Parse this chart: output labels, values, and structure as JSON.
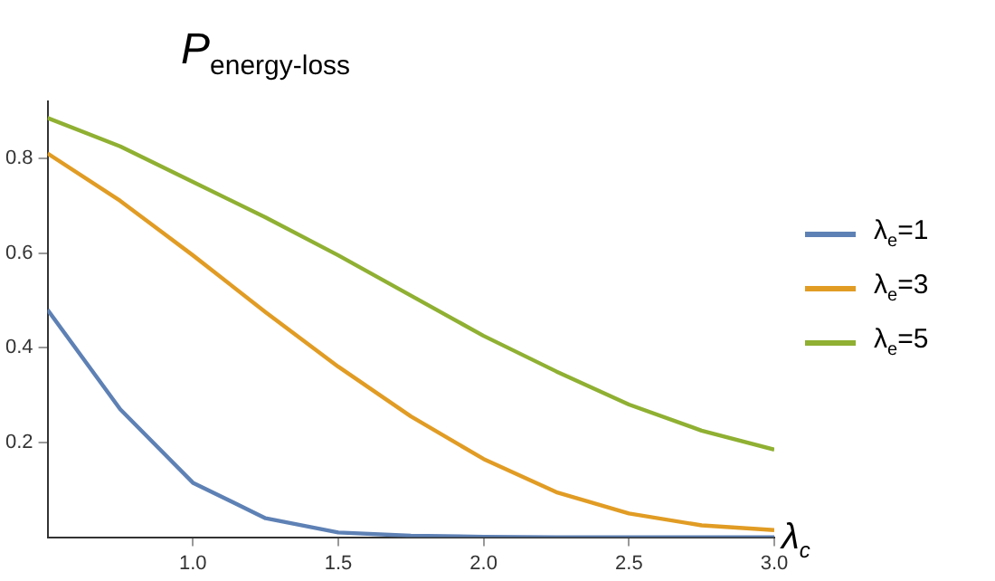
{
  "chart_data": {
    "type": "line",
    "title": "P$_{energy-loss}$",
    "xlabel": "λ$_{c}$",
    "x": [
      0.5,
      0.75,
      1.0,
      1.25,
      1.5,
      1.75,
      2.0,
      2.25,
      2.5,
      2.75,
      3.0
    ],
    "series": [
      {
        "name": "λ$_{e}$=1",
        "color": "#5e81b5",
        "values": [
          0.48,
          0.27,
          0.115,
          0.04,
          0.01,
          0.003,
          0.001,
          0,
          0,
          0,
          0
        ]
      },
      {
        "name": "λ$_{e}$=3",
        "color": "#e19c24",
        "values": [
          0.81,
          0.71,
          0.595,
          0.475,
          0.36,
          0.255,
          0.165,
          0.095,
          0.05,
          0.025,
          0.015
        ]
      },
      {
        "name": "λ$_{e}$=5",
        "color": "#8fb032",
        "values": [
          0.885,
          0.825,
          0.75,
          0.675,
          0.595,
          0.51,
          0.425,
          0.35,
          0.28,
          0.225,
          0.185
        ]
      }
    ],
    "xlim": [
      0.5,
      3.0
    ],
    "ylim": [
      0,
      0.92
    ],
    "xticks": [
      {
        "value": 1,
        "label": "1.0"
      },
      {
        "value": 1.5,
        "label": "1.5"
      },
      {
        "value": 2,
        "label": "2.0"
      },
      {
        "value": 2.5,
        "label": "2.5"
      },
      {
        "value": 3,
        "label": "3.0"
      }
    ],
    "yticks": [
      0.2,
      0.4,
      0.6,
      0.8
    ],
    "grid": false,
    "legend": "right",
    "marker": "none",
    "line_style": "solid"
  }
}
